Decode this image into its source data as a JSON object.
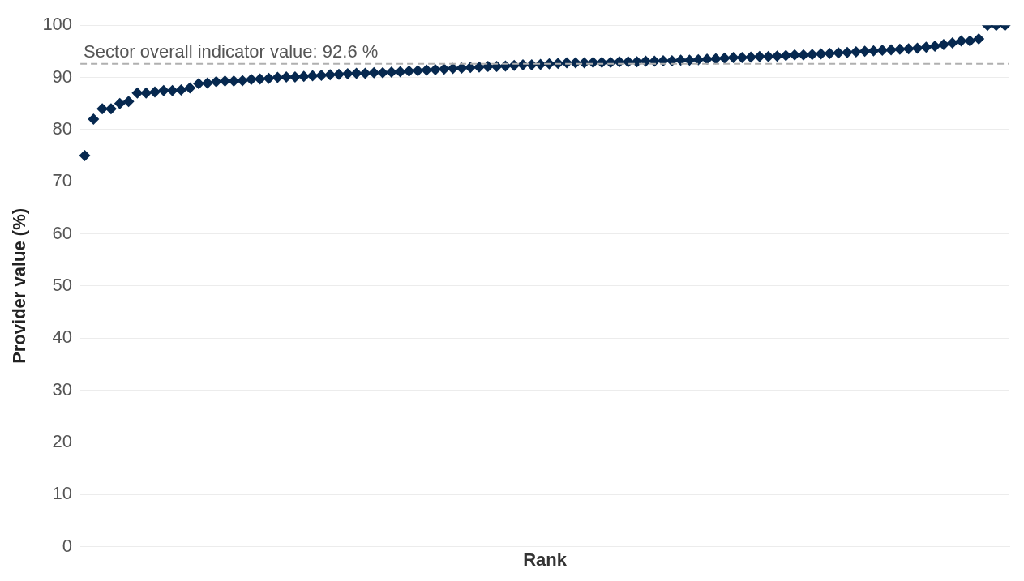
{
  "chart_data": {
    "type": "scatter",
    "xlabel": "Rank",
    "ylabel": "Provider value (%)",
    "categories": [
      null,
      null,
      null,
      null,
      null,
      null,
      null,
      null,
      null,
      null,
      null,
      null,
      null,
      null,
      null,
      null,
      null,
      null,
      null,
      null,
      null,
      null,
      null,
      null,
      null,
      null,
      null,
      null,
      null,
      null,
      null,
      null,
      null,
      null,
      null,
      null,
      null,
      null,
      null,
      null,
      null,
      null,
      null,
      null,
      null,
      null,
      null,
      null,
      null,
      null,
      null,
      null,
      null,
      null,
      null,
      null,
      null,
      null,
      null,
      null,
      null,
      null,
      null,
      null,
      null,
      null,
      null,
      null,
      null,
      null,
      null,
      null,
      null,
      null,
      null,
      null,
      null,
      null,
      null,
      null,
      null,
      null,
      null,
      null,
      null,
      null,
      null,
      null,
      null,
      null,
      null,
      null,
      null,
      null,
      null,
      null,
      null,
      null,
      null,
      null,
      null,
      null,
      null,
      null,
      null,
      null
    ],
    "series": [
      {
        "color": "#06284f",
        "values": [
          75,
          82,
          84,
          84,
          85,
          85.4,
          87,
          87,
          87.2,
          87.5,
          87.5,
          87.6,
          88,
          88.8,
          88.9,
          89.2,
          89.3,
          89.3,
          89.4,
          89.6,
          89.7,
          89.8,
          90,
          90.1,
          90.1,
          90.2,
          90.3,
          90.4,
          90.5,
          90.6,
          90.7,
          90.8,
          90.8,
          90.9,
          90.9,
          91,
          91.1,
          91.2,
          91.3,
          91.4,
          91.5,
          91.6,
          91.7,
          91.8,
          91.9,
          92,
          92.1,
          92.1,
          92.2,
          92.3,
          92.4,
          92.4,
          92.5,
          92.6,
          92.7,
          92.8,
          92.8,
          92.8,
          92.9,
          92.9,
          92.9,
          93,
          93,
          93,
          93.1,
          93.1,
          93.2,
          93.2,
          93.3,
          93.3,
          93.4,
          93.5,
          93.6,
          93.7,
          93.8,
          93.8,
          93.9,
          94,
          94,
          94.1,
          94.2,
          94.3,
          94.3,
          94.4,
          94.5,
          94.6,
          94.7,
          94.8,
          94.9,
          95,
          95.1,
          95.2,
          95.3,
          95.4,
          95.5,
          95.6,
          95.8,
          96,
          96.3,
          96.6,
          97,
          97,
          97.4,
          100,
          100,
          100
        ]
      }
    ],
    "ylim": [
      0,
      100
    ],
    "yticks": [
      0,
      10,
      20,
      30,
      40,
      50,
      60,
      70,
      80,
      90,
      100
    ],
    "grid": "y",
    "marker": "diamond",
    "tick_labels": "y",
    "ref_lines": [
      {
        "axis": "y",
        "value": 92.6,
        "label": "Sector overall indicator value: 92.6 %",
        "color": "#b0b0b0",
        "line_style": "dashed"
      }
    ]
  }
}
